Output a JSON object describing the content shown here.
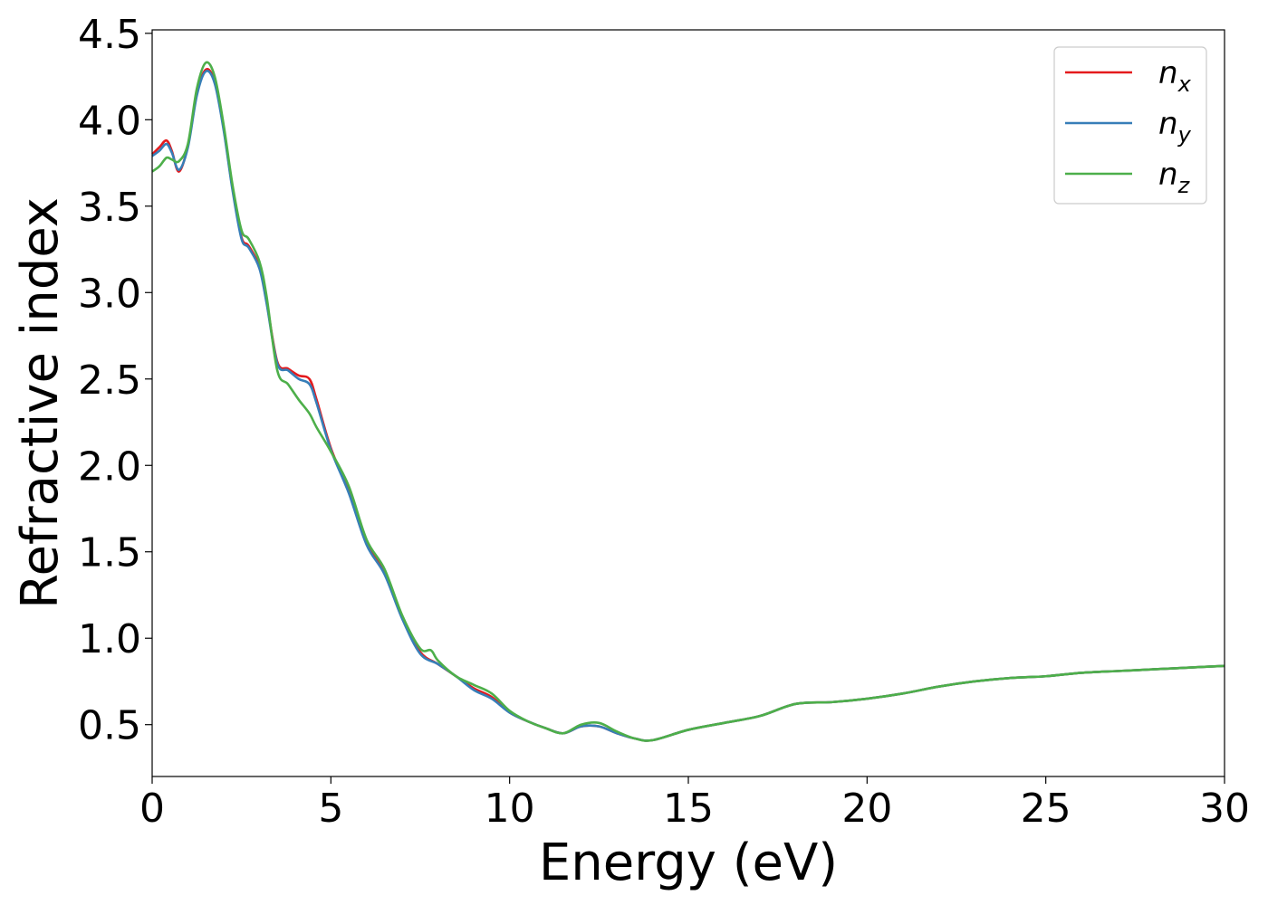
{
  "chart_data": {
    "type": "line",
    "xlabel": "Energy (eV)",
    "ylabel": "Refractive index",
    "xlim": [
      0,
      30
    ],
    "ylim": [
      0.2,
      4.52
    ],
    "xticks": [
      0,
      5,
      10,
      15,
      20,
      25,
      30
    ],
    "xtick_labels": [
      "0",
      "5",
      "10",
      "15",
      "20",
      "25",
      "30"
    ],
    "yticks": [
      0.5,
      1.0,
      1.5,
      2.0,
      2.5,
      3.0,
      3.5,
      4.0,
      4.5
    ],
    "ytick_labels": [
      "0.5",
      "1.0",
      "1.5",
      "2.0",
      "2.5",
      "3.0",
      "3.5",
      "4.0",
      "4.5"
    ],
    "grid": false,
    "legend_position": "top-right",
    "series": [
      {
        "name": "n",
        "subscript": "x",
        "color": "#e41a1c",
        "x": [
          0,
          0.2,
          0.4,
          0.55,
          0.75,
          1.0,
          1.25,
          1.5,
          1.75,
          2.0,
          2.25,
          2.5,
          2.7,
          3.0,
          3.2,
          3.5,
          3.8,
          4.1,
          4.4,
          4.6,
          5.0,
          5.5,
          6.0,
          6.5,
          7.0,
          7.5,
          8.0,
          8.5,
          9.0,
          9.5,
          10.0,
          10.5,
          11.0,
          11.5,
          12.0,
          12.5,
          13.0,
          13.5,
          14.0,
          15.0,
          16.0,
          17.0,
          18.0,
          19.0,
          20.0,
          21.0,
          22.0,
          23.0,
          24.0,
          25.0,
          26.0,
          27.0,
          28.0,
          29.0,
          30.0
        ],
        "y": [
          3.8,
          3.84,
          3.88,
          3.82,
          3.7,
          3.85,
          4.15,
          4.29,
          4.22,
          3.95,
          3.6,
          3.32,
          3.27,
          3.15,
          2.95,
          2.6,
          2.56,
          2.52,
          2.5,
          2.38,
          2.1,
          1.85,
          1.55,
          1.38,
          1.12,
          0.92,
          0.85,
          0.78,
          0.71,
          0.66,
          0.57,
          0.52,
          0.48,
          0.45,
          0.49,
          0.49,
          0.45,
          0.42,
          0.41,
          0.47,
          0.51,
          0.55,
          0.62,
          0.63,
          0.65,
          0.68,
          0.72,
          0.75,
          0.77,
          0.78,
          0.8,
          0.81,
          0.82,
          0.83,
          0.84
        ]
      },
      {
        "name": "n",
        "subscript": "y",
        "color": "#377eb8",
        "x": [
          0,
          0.2,
          0.4,
          0.55,
          0.75,
          1.0,
          1.25,
          1.5,
          1.75,
          2.0,
          2.25,
          2.5,
          2.7,
          3.0,
          3.2,
          3.5,
          3.8,
          4.1,
          4.4,
          4.6,
          5.0,
          5.5,
          6.0,
          6.5,
          7.0,
          7.5,
          8.0,
          8.5,
          9.0,
          9.5,
          10.0,
          10.5,
          11.0,
          11.5,
          12.0,
          12.5,
          13.0,
          13.5,
          14.0,
          15.0,
          16.0,
          17.0,
          18.0,
          19.0,
          20.0,
          21.0,
          22.0,
          23.0,
          24.0,
          25.0,
          26.0,
          27.0,
          28.0,
          29.0,
          30.0
        ],
        "y": [
          3.79,
          3.82,
          3.86,
          3.81,
          3.71,
          3.84,
          4.14,
          4.28,
          4.21,
          3.94,
          3.59,
          3.31,
          3.26,
          3.14,
          2.94,
          2.59,
          2.55,
          2.5,
          2.47,
          2.36,
          2.09,
          1.84,
          1.54,
          1.37,
          1.11,
          0.91,
          0.85,
          0.78,
          0.7,
          0.65,
          0.57,
          0.52,
          0.48,
          0.45,
          0.49,
          0.49,
          0.45,
          0.42,
          0.41,
          0.47,
          0.51,
          0.55,
          0.62,
          0.63,
          0.65,
          0.68,
          0.72,
          0.75,
          0.77,
          0.78,
          0.8,
          0.81,
          0.82,
          0.83,
          0.84
        ]
      },
      {
        "name": "n",
        "subscript": "z",
        "color": "#4daf4a",
        "x": [
          0,
          0.2,
          0.4,
          0.55,
          0.75,
          1.0,
          1.25,
          1.5,
          1.75,
          2.0,
          2.25,
          2.5,
          2.7,
          3.0,
          3.2,
          3.5,
          3.8,
          4.1,
          4.4,
          4.6,
          5.0,
          5.5,
          6.0,
          6.5,
          7.0,
          7.5,
          7.8,
          8.0,
          8.5,
          9.0,
          9.5,
          10.0,
          10.5,
          11.0,
          11.5,
          12.0,
          12.5,
          13.0,
          13.5,
          14.0,
          15.0,
          16.0,
          17.0,
          18.0,
          19.0,
          20.0,
          21.0,
          22.0,
          23.0,
          24.0,
          25.0,
          26.0,
          27.0,
          28.0,
          29.0,
          30.0
        ],
        "y": [
          3.7,
          3.73,
          3.78,
          3.77,
          3.76,
          3.86,
          4.18,
          4.33,
          4.25,
          3.97,
          3.62,
          3.36,
          3.31,
          3.18,
          2.98,
          2.55,
          2.47,
          2.38,
          2.3,
          2.22,
          2.08,
          1.88,
          1.57,
          1.4,
          1.13,
          0.94,
          0.93,
          0.87,
          0.78,
          0.73,
          0.68,
          0.58,
          0.52,
          0.48,
          0.45,
          0.5,
          0.51,
          0.46,
          0.42,
          0.41,
          0.47,
          0.51,
          0.55,
          0.62,
          0.63,
          0.65,
          0.68,
          0.72,
          0.75,
          0.77,
          0.78,
          0.8,
          0.81,
          0.82,
          0.83,
          0.84
        ]
      }
    ]
  }
}
